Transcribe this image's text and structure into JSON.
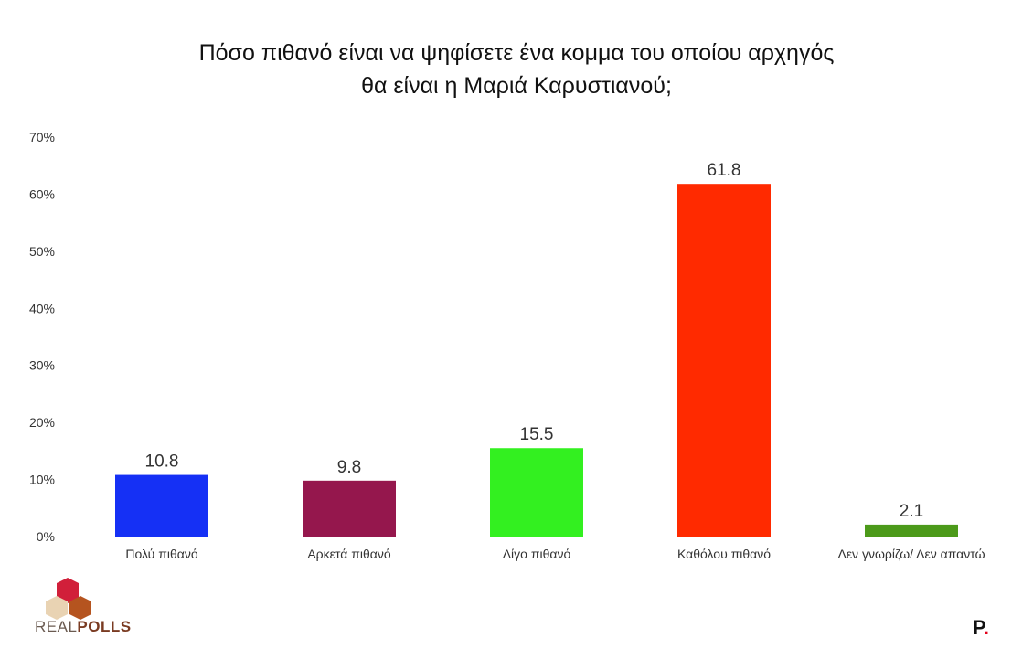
{
  "chart_data": {
    "type": "bar",
    "title": [
      "Πόσο πιθανό είναι να ψηφίσετε ένα κομμα του οποίου αρχηγός",
      "θα είναι η Μαριά Καρυστιανού;"
    ],
    "categories": [
      "Πολύ πιθανό",
      "Αρκετά πιθανό",
      "Λίγο πιθανό",
      "Καθόλου πιθανό",
      "Δεν γνωρίζω/ Δεν απαντώ"
    ],
    "values": [
      10.8,
      9.8,
      15.5,
      61.8,
      2.1
    ],
    "value_labels": [
      "10.8",
      "9.8",
      "15.5",
      "61.8",
      "2.1"
    ],
    "colors": [
      "#1530f5",
      "#95174d",
      "#33f020",
      "#ff2a00",
      "#4c9a1a"
    ],
    "ylim": [
      0,
      70
    ],
    "yticks": [
      "0%",
      "10%",
      "20%",
      "30%",
      "40%",
      "50%",
      "60%",
      "70%"
    ],
    "grid": false,
    "xlabel": "",
    "ylabel": ""
  },
  "branding": {
    "left_logo": "REALPOLLS",
    "right_logo": "P."
  }
}
